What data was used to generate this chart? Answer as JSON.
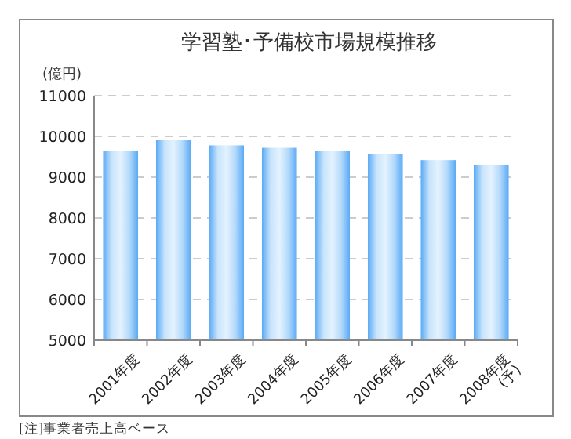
{
  "chart_data": {
    "type": "bar",
    "title": "学習塾･予備校市場規模推移",
    "ylabel": "(億円)",
    "categories": [
      "2001年度",
      "2002年度",
      "2003年度",
      "2004年度",
      "2005年度",
      "2006年度",
      "2007年度",
      "2008年度\n(予)"
    ],
    "values": [
      9650,
      9920,
      9780,
      9720,
      9640,
      9570,
      9420,
      9290
    ],
    "color": "#5aaaf5",
    "ylim": [
      5000,
      11000
    ],
    "yticks": [
      5000,
      6000,
      7000,
      8000,
      9000,
      10000,
      11000
    ],
    "grid": "y",
    "annotations": [
      "[注]事業者売上高ベース"
    ]
  }
}
